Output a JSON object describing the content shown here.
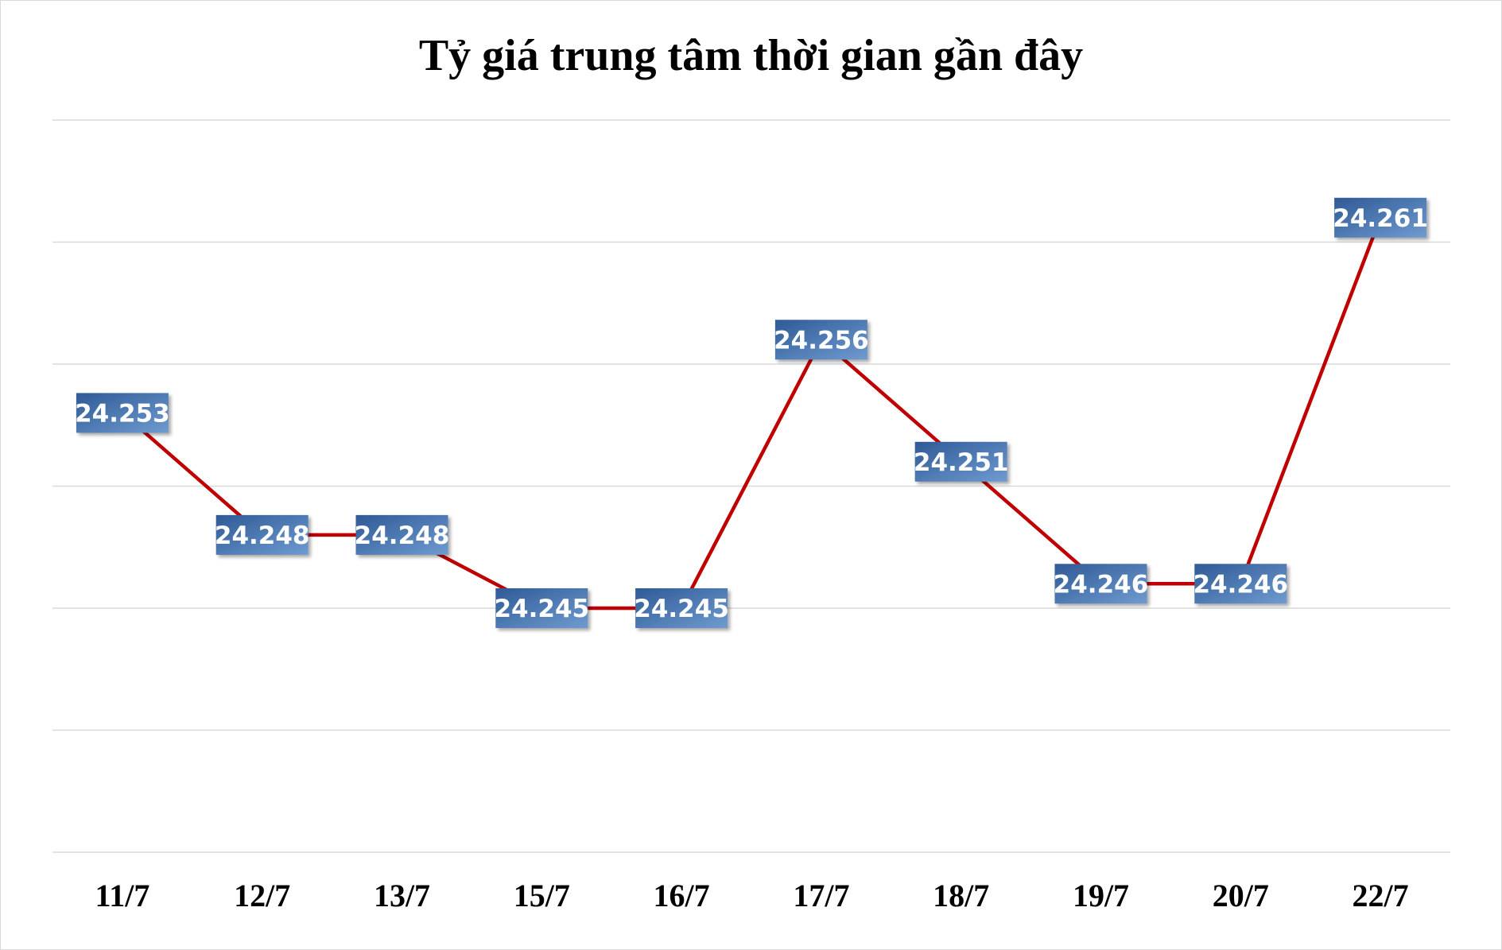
{
  "chart_data": {
    "type": "line",
    "title": "Tỷ giá trung tâm thời gian gần đây",
    "xlabel": "",
    "ylabel": "",
    "categories": [
      "11/7",
      "12/7",
      "13/7",
      "15/7",
      "16/7",
      "17/7",
      "18/7",
      "19/7",
      "20/7",
      "22/7"
    ],
    "series": [
      {
        "values": [
          24253,
          24248,
          24248,
          24245,
          24245,
          24256,
          24251,
          24246,
          24246,
          24261
        ],
        "labels": [
          "24.253",
          "24.248",
          "24.248",
          "24.245",
          "24.245",
          "24.256",
          "24.251",
          "24.246",
          "24.246",
          "24.261"
        ],
        "color": "#c00000"
      }
    ],
    "ylim": [
      24235,
      24265
    ],
    "y_gridlines": [
      24235,
      24240,
      24245,
      24250,
      24255,
      24260,
      24265
    ],
    "grid": true,
    "legend": "none",
    "label_color": "#3c6aa8"
  }
}
